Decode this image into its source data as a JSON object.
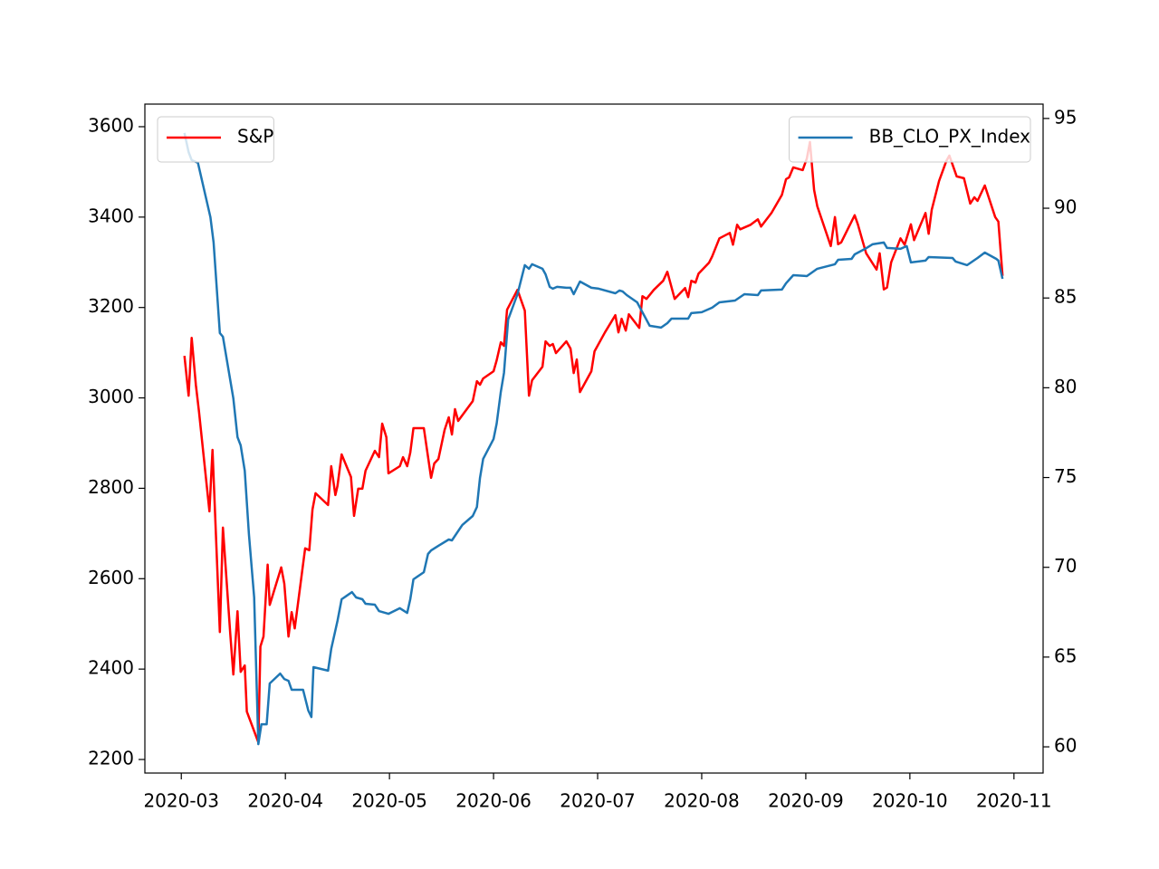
{
  "chart_data": {
    "type": "line",
    "xlim": [
      -0.35,
      8.28
    ],
    "xticks": [
      {
        "value": 0,
        "label": "2020-03"
      },
      {
        "value": 1,
        "label": "2020-04"
      },
      {
        "value": 2,
        "label": "2020-05"
      },
      {
        "value": 3,
        "label": "2020-06"
      },
      {
        "value": 4,
        "label": "2020-07"
      },
      {
        "value": 5,
        "label": "2020-08"
      },
      {
        "value": 6,
        "label": "2020-09"
      },
      {
        "value": 7,
        "label": "2020-10"
      },
      {
        "value": 8,
        "label": "2020-11"
      }
    ],
    "ylim": [
      2170,
      3650
    ],
    "yticks": [
      2200,
      2400,
      2600,
      2800,
      3000,
      3200,
      3400,
      3600
    ],
    "y2lim": [
      58.54,
      95.8
    ],
    "y2ticks": [
      60,
      65,
      70,
      75,
      80,
      85,
      90,
      95
    ],
    "series": [
      {
        "name": "S&P",
        "color": "#ff0000",
        "legend_loc": "upper left",
        "x": [
          0.03,
          0.07,
          0.1,
          0.14,
          0.17,
          0.27,
          0.3,
          0.37,
          0.4,
          0.47,
          0.5,
          0.54,
          0.57,
          0.61,
          0.63,
          0.74,
          0.76,
          0.79,
          0.83,
          0.85,
          0.96,
          0.99,
          1.03,
          1.06,
          1.09,
          1.19,
          1.23,
          1.26,
          1.29,
          1.41,
          1.44,
          1.48,
          1.5,
          1.54,
          1.63,
          1.66,
          1.7,
          1.74,
          1.77,
          1.86,
          1.9,
          1.93,
          1.97,
          1.99,
          2.1,
          2.13,
          2.17,
          2.2,
          2.23,
          2.33,
          2.4,
          2.43,
          2.47,
          2.53,
          2.57,
          2.6,
          2.63,
          2.66,
          2.8,
          2.84,
          2.87,
          2.9,
          3.0,
          3.03,
          3.07,
          3.1,
          3.13,
          3.23,
          3.3,
          3.34,
          3.37,
          3.47,
          3.5,
          3.54,
          3.57,
          3.6,
          3.7,
          3.74,
          3.77,
          3.8,
          3.83,
          3.94,
          3.97,
          4.07,
          4.17,
          4.2,
          4.23,
          4.27,
          4.3,
          4.4,
          4.43,
          4.47,
          4.54,
          4.63,
          4.67,
          4.74,
          4.84,
          4.87,
          4.9,
          4.94,
          4.97,
          5.07,
          5.1,
          5.17,
          5.27,
          5.3,
          5.34,
          5.37,
          5.47,
          5.54,
          5.57,
          5.67,
          5.77,
          5.81,
          5.84,
          5.88,
          5.97,
          6.01,
          6.04,
          6.08,
          6.11,
          6.24,
          6.28,
          6.31,
          6.34,
          6.47,
          6.5,
          6.55,
          6.58,
          6.68,
          6.71,
          6.75,
          6.78,
          6.82,
          6.91,
          6.95,
          7.01,
          7.04,
          7.15,
          7.18,
          7.21,
          7.28,
          7.35,
          7.38,
          7.45,
          7.52,
          7.58,
          7.62,
          7.65,
          7.72,
          7.82,
          7.85,
          7.89
        ],
        "values": [
          3093,
          3005,
          3133,
          3029,
          2969,
          2749,
          2885,
          2482,
          2713,
          2478,
          2388,
          2528,
          2394,
          2408,
          2306,
          2238,
          2450,
          2472,
          2631,
          2542,
          2625,
          2589,
          2472,
          2526,
          2490,
          2667,
          2663,
          2753,
          2789,
          2763,
          2849,
          2785,
          2805,
          2875,
          2825,
          2739,
          2799,
          2799,
          2839,
          2883,
          2869,
          2943,
          2913,
          2833,
          2849,
          2869,
          2849,
          2879,
          2933,
          2933,
          2823,
          2855,
          2865,
          2929,
          2957,
          2919,
          2975,
          2949,
          2993,
          3037,
          3029,
          3043,
          3059,
          3083,
          3123,
          3115,
          3195,
          3239,
          3193,
          3005,
          3039,
          3069,
          3125,
          3115,
          3119,
          3099,
          3125,
          3109,
          3055,
          3085,
          3013,
          3059,
          3103,
          3145,
          3183,
          3145,
          3175,
          3149,
          3185,
          3155,
          3225,
          3219,
          3239,
          3259,
          3279,
          3219,
          3243,
          3223,
          3259,
          3255,
          3275,
          3299,
          3313,
          3353,
          3365,
          3339,
          3383,
          3373,
          3383,
          3395,
          3379,
          3409,
          3449,
          3484,
          3488,
          3510,
          3504,
          3530,
          3566,
          3460,
          3424,
          3336,
          3400,
          3340,
          3344,
          3404,
          3384,
          3344,
          3320,
          3284,
          3320,
          3240,
          3244,
          3300,
          3353,
          3339,
          3384,
          3349,
          3409,
          3363,
          3416,
          3480,
          3524,
          3536,
          3490,
          3486,
          3430,
          3444,
          3436,
          3470,
          3400,
          3390,
          3270
        ]
      },
      {
        "name": "BB_CLO_PX_Index",
        "color": "#1f77b4",
        "axis": "y2",
        "legend_loc": "upper right",
        "x": [
          0.03,
          0.07,
          0.1,
          0.16,
          0.28,
          0.31,
          0.37,
          0.4,
          0.5,
          0.54,
          0.57,
          0.61,
          0.65,
          0.7,
          0.74,
          0.77,
          0.82,
          0.85,
          0.95,
          0.99,
          1.03,
          1.06,
          1.17,
          1.22,
          1.25,
          1.27,
          1.41,
          1.44,
          1.5,
          1.54,
          1.64,
          1.68,
          1.74,
          1.77,
          1.86,
          1.9,
          1.99,
          2.1,
          2.17,
          2.2,
          2.23,
          2.33,
          2.37,
          2.4,
          2.47,
          2.57,
          2.6,
          2.7,
          2.8,
          2.84,
          2.87,
          2.9,
          3.0,
          3.03,
          3.07,
          3.1,
          3.14,
          3.23,
          3.3,
          3.34,
          3.37,
          3.47,
          3.5,
          3.54,
          3.57,
          3.61,
          3.7,
          3.74,
          3.77,
          3.83,
          3.94,
          4.01,
          4.17,
          4.21,
          4.24,
          4.28,
          4.38,
          4.43,
          4.5,
          4.61,
          4.67,
          4.71,
          4.87,
          4.9,
          5.0,
          5.1,
          5.17,
          5.32,
          5.41,
          5.54,
          5.57,
          5.77,
          5.81,
          5.88,
          6.01,
          6.11,
          6.28,
          6.31,
          6.44,
          6.47,
          6.57,
          6.64,
          6.75,
          6.78,
          6.91,
          6.97,
          7.01,
          7.15,
          7.18,
          7.41,
          7.44,
          7.55,
          7.65,
          7.72,
          7.83,
          7.85,
          7.89
        ],
        "values": [
          94.19,
          93.13,
          92.68,
          92.53,
          89.5,
          88.09,
          83.05,
          82.84,
          79.41,
          77.25,
          76.79,
          75.38,
          71.85,
          68.32,
          60.15,
          61.26,
          61.26,
          63.53,
          64.08,
          63.78,
          63.68,
          63.18,
          63.18,
          62.02,
          61.66,
          64.44,
          64.24,
          65.45,
          67.01,
          68.22,
          68.62,
          68.32,
          68.22,
          67.97,
          67.92,
          67.56,
          67.41,
          67.72,
          67.46,
          68.22,
          69.33,
          69.73,
          70.74,
          70.94,
          71.2,
          71.55,
          71.5,
          72.36,
          72.86,
          73.36,
          74.98,
          76.04,
          77.15,
          78.0,
          79.77,
          80.83,
          83.8,
          85.21,
          86.83,
          86.63,
          86.88,
          86.63,
          86.32,
          85.62,
          85.52,
          85.62,
          85.57,
          85.57,
          85.21,
          85.92,
          85.57,
          85.52,
          85.26,
          85.42,
          85.37,
          85.16,
          84.76,
          84.21,
          83.45,
          83.35,
          83.6,
          83.85,
          83.85,
          84.16,
          84.21,
          84.46,
          84.76,
          84.86,
          85.21,
          85.16,
          85.42,
          85.47,
          85.82,
          86.27,
          86.22,
          86.63,
          86.88,
          87.13,
          87.18,
          87.43,
          87.74,
          87.99,
          88.09,
          87.79,
          87.74,
          87.89,
          86.98,
          87.08,
          87.28,
          87.23,
          87.03,
          86.83,
          87.23,
          87.53,
          87.18,
          87.08,
          86.07
        ]
      }
    ]
  }
}
